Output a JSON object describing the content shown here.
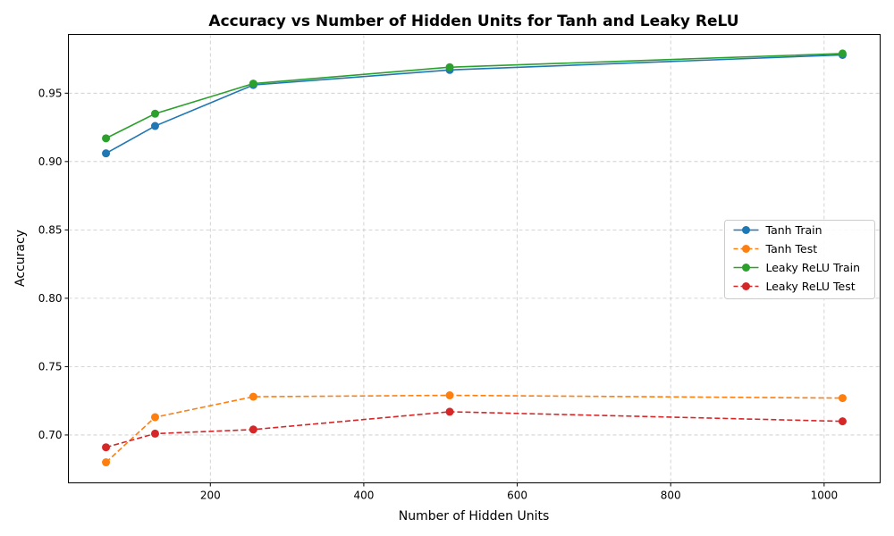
{
  "chart_data": {
    "type": "line",
    "title": "Accuracy vs Number of Hidden Units for Tanh and Leaky ReLU",
    "xlabel": "Number of Hidden Units",
    "ylabel": "Accuracy",
    "xlim": [
      15,
      1073
    ],
    "ylim": [
      0.665,
      0.993
    ],
    "xticks": [
      200,
      400,
      600,
      800,
      1000
    ],
    "yticks": [
      0.7,
      0.75,
      0.8,
      0.85,
      0.9,
      0.95
    ],
    "ytick_labels": [
      "0.70",
      "0.75",
      "0.80",
      "0.85",
      "0.90",
      "0.95"
    ],
    "grid": true,
    "legend_position": "center-right",
    "x": [
      64,
      128,
      256,
      512,
      1024
    ],
    "series": [
      {
        "name": "Tanh Train",
        "values": [
          0.906,
          0.926,
          0.956,
          0.967,
          0.978
        ],
        "color": "#1f77b4",
        "dashed": false
      },
      {
        "name": "Tanh Test",
        "values": [
          0.68,
          0.713,
          0.728,
          0.729,
          0.727
        ],
        "color": "#ff7f0e",
        "dashed": true
      },
      {
        "name": "Leaky ReLU Train",
        "values": [
          0.917,
          0.935,
          0.957,
          0.969,
          0.979
        ],
        "color": "#2ca02c",
        "dashed": false
      },
      {
        "name": "Leaky ReLU Test",
        "values": [
          0.691,
          0.701,
          0.704,
          0.717,
          0.71
        ],
        "color": "#d62728",
        "dashed": true
      }
    ]
  }
}
